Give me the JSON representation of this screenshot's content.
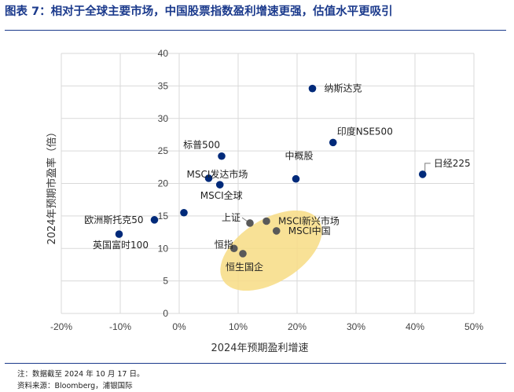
{
  "figure": {
    "title": "图表 7：相对于全球主要市场，中国股票指数盈利增速更强，估值水平更吸引"
  },
  "footer": {
    "note": "注：数据截至 2024 年 10 月 17 日。",
    "source": "资料来源：Bloomberg，浦银国际"
  },
  "colors": {
    "title": "#1b3a8c",
    "highlight_point": "#002a7a",
    "china_point": "#595959",
    "ellipse": "#f7dc84",
    "grid": "#d9d9d9"
  },
  "chart_data": {
    "type": "scatter",
    "xlabel": "2024年预期盈利增速",
    "ylabel": "2024年预期市盈率（倍）",
    "xlim": [
      -20,
      50
    ],
    "ylim": [
      0,
      40
    ],
    "x_ticks": [
      "-20%",
      "-10%",
      "0%",
      "10%",
      "20%",
      "30%",
      "40%",
      "50%"
    ],
    "x_tick_values": [
      -20,
      -10,
      0,
      10,
      20,
      30,
      40,
      50
    ],
    "y_ticks": [
      "0",
      "5",
      "10",
      "15",
      "20",
      "25",
      "30",
      "35",
      "40"
    ],
    "y_tick_values": [
      0,
      5,
      10,
      15,
      20,
      25,
      30,
      35,
      40
    ],
    "grid": true,
    "highlight_annotation": "China indices group",
    "points": [
      {
        "label": "纳斯达克",
        "x": 22.6,
        "y": 34.6,
        "group": "global",
        "label_pos": "right"
      },
      {
        "label": "印度NSE500",
        "x": 26.1,
        "y": 26.3,
        "group": "global",
        "label_pos": "upper-right"
      },
      {
        "label": "日经225",
        "x": 41.3,
        "y": 21.4,
        "group": "global",
        "label_pos": "upper-right"
      },
      {
        "label": "标普500",
        "x": 7.2,
        "y": 24.2,
        "group": "global",
        "label_pos": "upper-left"
      },
      {
        "label": "中概股",
        "x": 19.8,
        "y": 20.7,
        "group": "global",
        "label_pos": "above"
      },
      {
        "label": "MSCI发达市场",
        "x": 5.0,
        "y": 20.8,
        "group": "global",
        "label_pos": "upper-right"
      },
      {
        "label": "MSCI全球",
        "x": 6.9,
        "y": 19.8,
        "group": "global",
        "label_pos": "below"
      },
      {
        "label": "",
        "x": 0.8,
        "y": 15.5,
        "group": "global",
        "label_pos": "none"
      },
      {
        "label": "欧洲斯托克50",
        "x": -4.2,
        "y": 14.4,
        "group": "global",
        "label_pos": "left"
      },
      {
        "label": "英国富时100",
        "x": -10.2,
        "y": 12.2,
        "group": "global",
        "label_pos": "below"
      },
      {
        "label": "上证",
        "x": 12.0,
        "y": 13.9,
        "group": "china",
        "label_pos": "upper-left"
      },
      {
        "label": "MSCI新兴市场",
        "x": 14.8,
        "y": 14.2,
        "group": "china",
        "label_pos": "right"
      },
      {
        "label": "MSCI中国",
        "x": 16.5,
        "y": 12.7,
        "group": "china",
        "label_pos": "right"
      },
      {
        "label": "恒指",
        "x": 9.3,
        "y": 10.0,
        "group": "china",
        "label_pos": "left"
      },
      {
        "label": "恒生国企",
        "x": 10.8,
        "y": 9.2,
        "group": "china",
        "label_pos": "below"
      }
    ]
  }
}
